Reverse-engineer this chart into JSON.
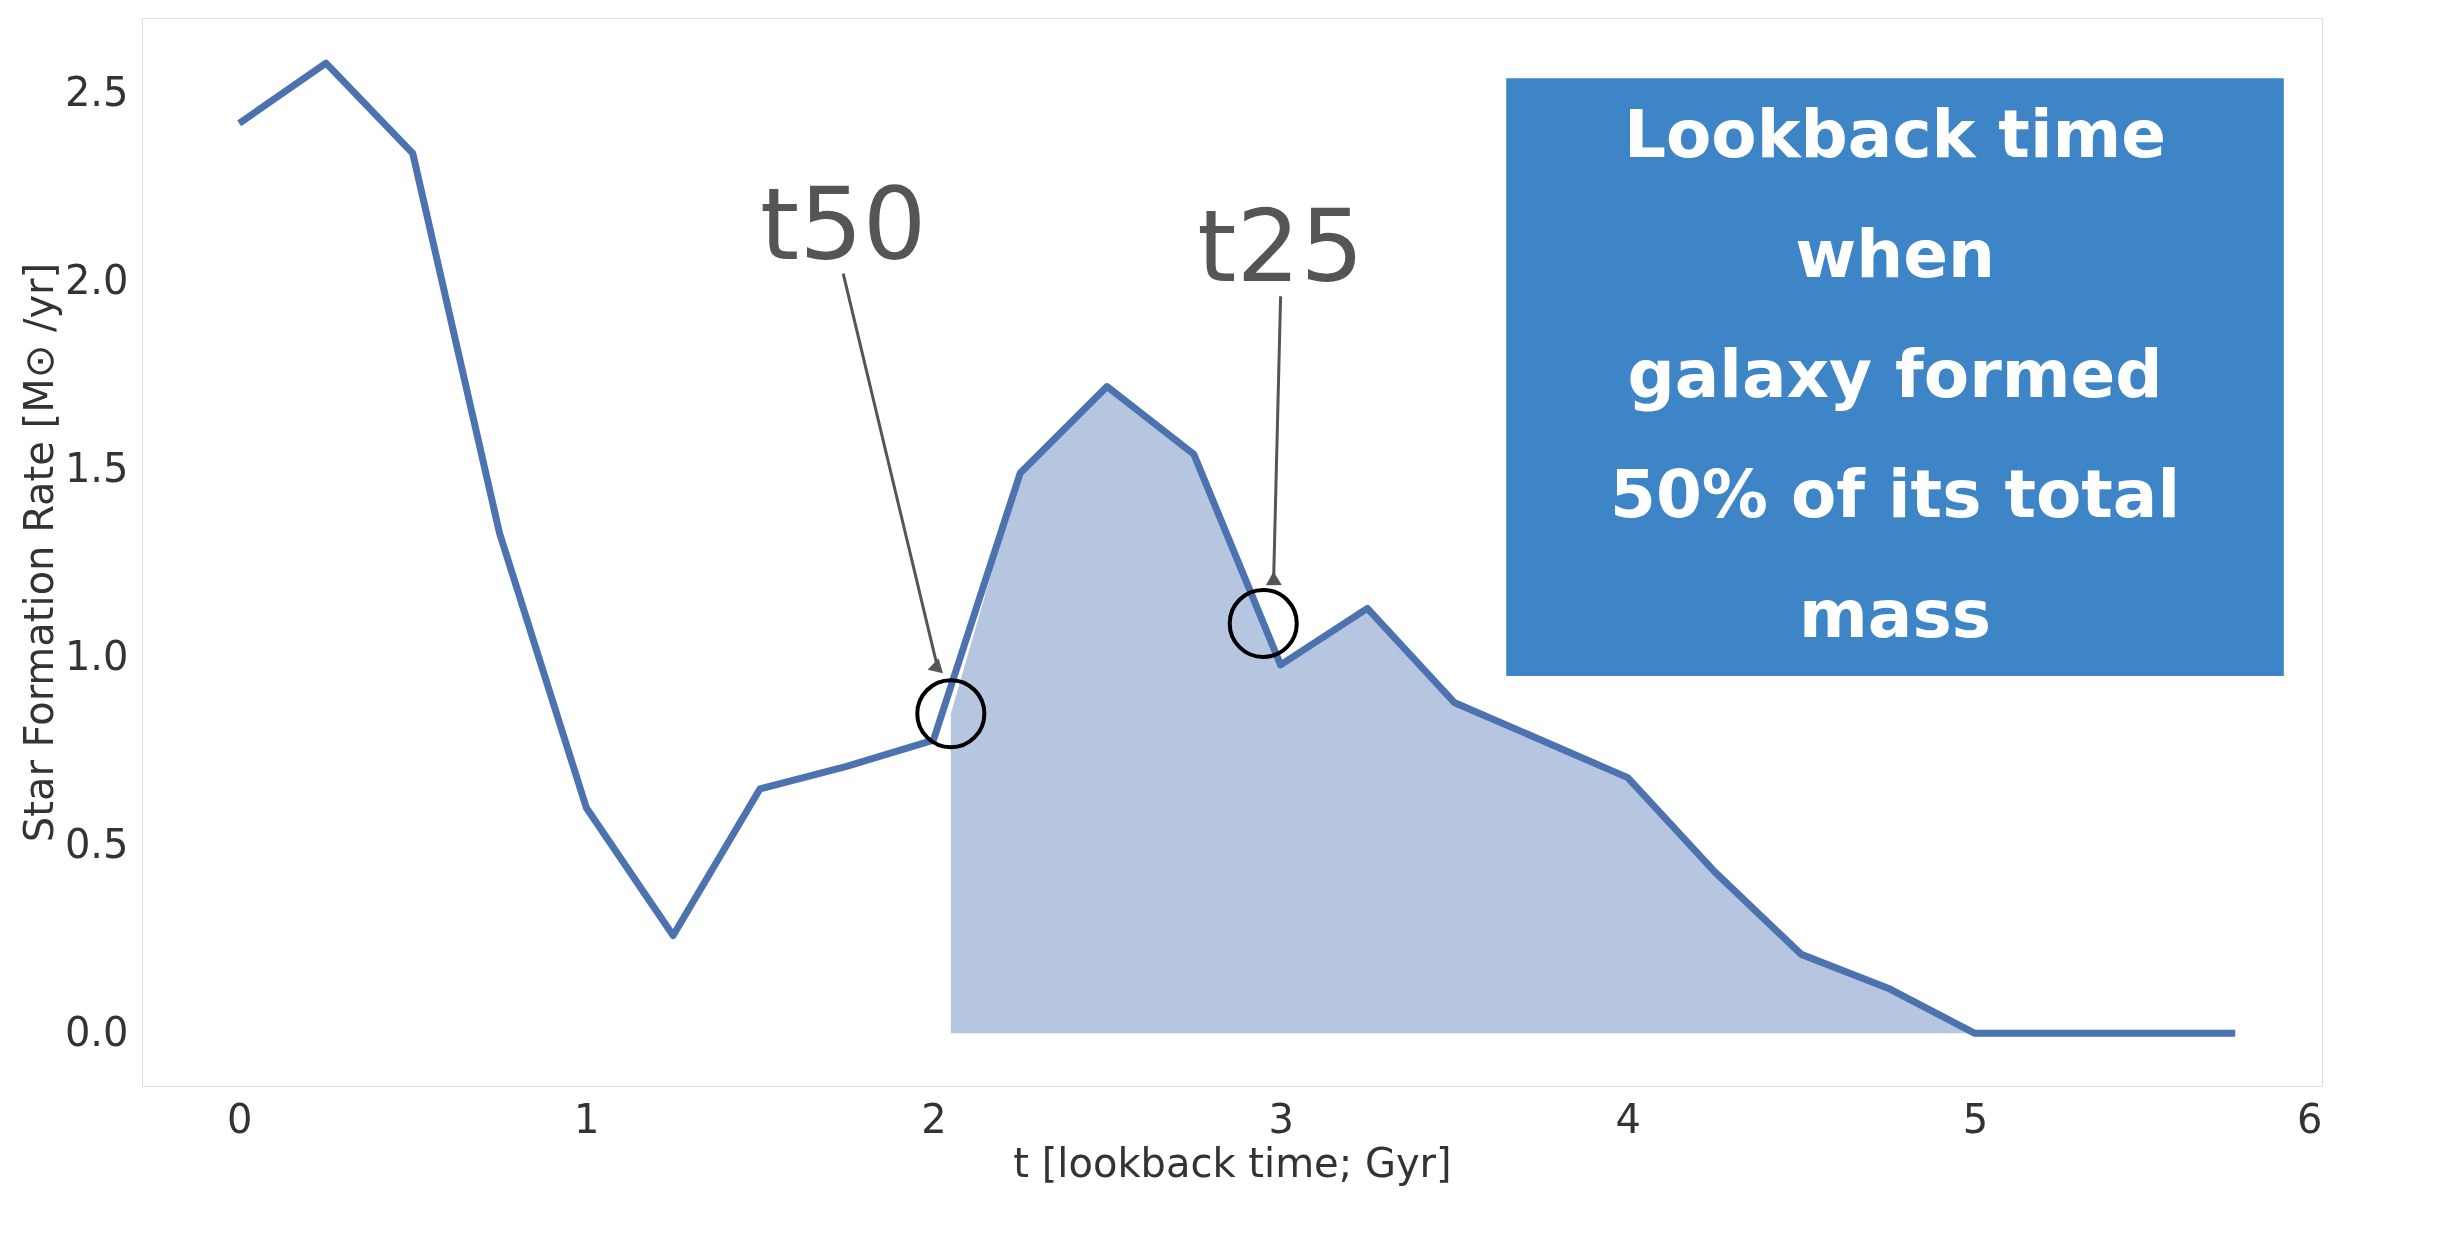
{
  "chart_data": {
    "type": "line",
    "xlabel": "t [lookback time; Gyr]",
    "ylabel": "Star Formation Rate [M⊙ /yr]",
    "series": [
      {
        "type": "area",
        "color": "#b6c6e0",
        "x": [
          2.05,
          2.25,
          2.5,
          2.75,
          3.0,
          3.25,
          3.5,
          3.75,
          4.0,
          4.25,
          4.5,
          4.75,
          5.0
        ],
        "values": [
          0.85,
          1.49,
          1.72,
          1.54,
          0.98,
          1.13,
          0.88,
          0.78,
          0.68,
          0.43,
          0.21,
          0.12,
          0.0
        ]
      },
      {
        "color": "#4c72b0",
        "x": [
          0,
          0.25,
          0.5,
          0.75,
          1.0,
          1.25,
          1.5,
          1.75,
          2.0,
          2.25,
          2.5,
          2.75,
          3.0,
          3.25,
          3.5,
          3.75,
          4.0,
          4.25,
          4.5,
          4.75,
          5.0,
          5.25,
          5.5,
          5.75
        ],
        "values": [
          2.42,
          2.58,
          2.34,
          1.33,
          0.6,
          0.26,
          0.65,
          0.71,
          0.78,
          1.49,
          1.72,
          1.54,
          0.98,
          1.13,
          0.88,
          0.78,
          0.68,
          0.43,
          0.21,
          0.12,
          0.0,
          0.0,
          0.0,
          0.0
        ]
      }
    ],
    "xlim": [
      -0.28,
      6.0
    ],
    "ylim": [
      -0.14,
      2.7
    ],
    "xticks": [
      0,
      1,
      2,
      3,
      4,
      5,
      6
    ],
    "yticks": [
      {
        "value": 0,
        "label": "0.0"
      },
      {
        "value": 0.5,
        "label": "0.5"
      },
      {
        "value": 1,
        "label": "1.0"
      },
      {
        "value": 1.5,
        "label": "1.5"
      },
      {
        "value": 2,
        "label": "2.0"
      },
      {
        "value": 2.5,
        "label": "2.5"
      }
    ],
    "grid": false,
    "annotations": [
      "t50",
      "t25",
      "Lookback time\nwhen\ngalaxy formed\n50% of its total\nmass"
    ]
  }
}
